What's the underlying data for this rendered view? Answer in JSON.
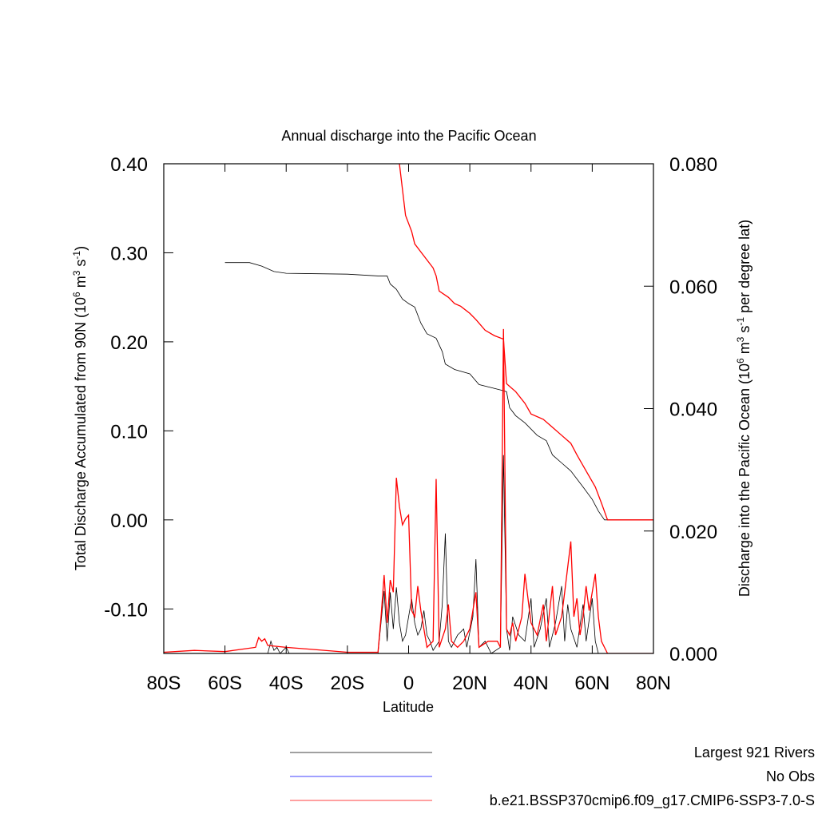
{
  "chart_data": {
    "type": "line",
    "title": "Annual discharge into the Pacific Ocean",
    "xlabel": "Latitude",
    "ylabel": [
      "Total Discharge Accumulated from 90N (10",
      "6",
      " m",
      "3",
      " s",
      "-1",
      ")"
    ],
    "y2label": [
      "Discharge into the Pacific Ocean (10",
      "6",
      " m",
      "3",
      " s",
      "-1",
      " per degree lat)"
    ],
    "xlim": [
      -80,
      80
    ],
    "xticks": [
      {
        "value": -80,
        "label": "80S"
      },
      {
        "value": -60,
        "label": "60S"
      },
      {
        "value": -40,
        "label": "40S"
      },
      {
        "value": -20,
        "label": "20S"
      },
      0,
      {
        "value": 20,
        "label": "20N"
      },
      {
        "value": 40,
        "label": "40N"
      },
      {
        "value": 60,
        "label": "60N"
      },
      {
        "value": 80,
        "label": "80N"
      }
    ],
    "ylim": [
      -0.15,
      0.4
    ],
    "yticks": [
      {
        "value": -0.1,
        "label": "-0.10"
      },
      {
        "value": 0,
        "label": "0.00"
      },
      {
        "value": 0.1,
        "label": "0.10"
      },
      {
        "value": 0.2,
        "label": "0.20"
      },
      {
        "value": 0.3,
        "label": "0.30"
      },
      {
        "value": 0.4,
        "label": "0.40"
      }
    ],
    "y2lim": [
      0,
      0.08
    ],
    "y2ticks": [
      {
        "value": 0,
        "label": "0.000"
      },
      {
        "value": 0.02,
        "label": "0.020"
      },
      {
        "value": 0.04,
        "label": "0.040"
      },
      {
        "value": 0.06,
        "label": "0.060"
      },
      {
        "value": 0.08,
        "label": "0.080"
      }
    ],
    "legend": [
      {
        "name": "Largest 921 Rivers",
        "color": "#000000"
      },
      {
        "name": "No Obs",
        "color": "#0000ff"
      },
      {
        "name": "b.e21.BSSP370cmip6.f09_g17.CMIP6-SSP3-7.0-S",
        "color": "#ff0000"
      }
    ],
    "series": [
      {
        "color": "#000000",
        "axis": "y",
        "x": [
          -60,
          -52,
          -48,
          -44,
          -40,
          -20,
          -10,
          -7,
          -6,
          -4,
          -2,
          0,
          2,
          3,
          4,
          6,
          9,
          11,
          12,
          15,
          20,
          23,
          30,
          32,
          33,
          35,
          38,
          42,
          45,
          47,
          50,
          53,
          57,
          60,
          62,
          64,
          70,
          80
        ],
        "values": [
          0.289,
          0.289,
          0.285,
          0.279,
          0.277,
          0.276,
          0.274,
          0.274,
          0.265,
          0.259,
          0.248,
          0.243,
          0.239,
          0.23,
          0.221,
          0.209,
          0.204,
          0.189,
          0.175,
          0.169,
          0.164,
          0.152,
          0.146,
          0.144,
          0.126,
          0.117,
          0.109,
          0.095,
          0.089,
          0.073,
          0.064,
          0.055,
          0.037,
          0.023,
          0.01,
          0,
          0,
          0
        ]
      },
      {
        "color": "#ff0000",
        "axis": "y",
        "x": [
          -3,
          -1,
          0,
          1,
          2,
          4,
          6,
          8,
          9,
          10,
          13,
          15,
          17,
          20,
          22,
          25,
          28,
          31,
          32,
          35,
          38,
          40,
          44,
          47,
          50,
          53,
          55,
          58,
          61,
          63,
          65,
          80
        ],
        "values": [
          0.4,
          0.342,
          0.333,
          0.324,
          0.31,
          0.301,
          0.292,
          0.283,
          0.274,
          0.257,
          0.25,
          0.243,
          0.24,
          0.232,
          0.225,
          0.213,
          0.207,
          0.203,
          0.153,
          0.144,
          0.131,
          0.119,
          0.113,
          0.104,
          0.095,
          0.086,
          0.073,
          0.055,
          0.037,
          0.019,
          0,
          0
        ]
      },
      {
        "color": "#000000",
        "axis": "y2",
        "x": [
          -80,
          -46,
          -45,
          -44,
          -43,
          -42,
          -40,
          -39,
          -10,
          -8,
          -7,
          -6,
          -5,
          -4,
          -3,
          -2,
          -1,
          0,
          1,
          2,
          3,
          4,
          5,
          6,
          7,
          8,
          10,
          11,
          12,
          13,
          14,
          16,
          18,
          19,
          21,
          22,
          23,
          25,
          27,
          30,
          31,
          32,
          33,
          34,
          36,
          38,
          40,
          41,
          43,
          45,
          46,
          48,
          50,
          51,
          52,
          53,
          55,
          57,
          58,
          60,
          61,
          62,
          80
        ],
        "values": [
          0,
          0,
          0.002,
          0.0005,
          0.001,
          0,
          0.001,
          0,
          0,
          0.0102,
          0.002,
          0.01,
          0.004,
          0.0108,
          0.005,
          0.002,
          0.003,
          0.006,
          0.0089,
          0.005,
          0.003,
          0.004,
          0.007,
          0.003,
          0.002,
          0.0005,
          0.002,
          0.008,
          0.0196,
          0.002,
          0.001,
          0.003,
          0.004,
          0.001,
          0.006,
          0.0154,
          0.001,
          0.002,
          0,
          0.001,
          0.0324,
          0.004,
          0.0005,
          0.006,
          0.003,
          0.002,
          0.009,
          0.001,
          0.004,
          0.009,
          0.001,
          0.005,
          0.011,
          0.002,
          0.008,
          0.004,
          0.001,
          0.008,
          0.002,
          0.009,
          0.002,
          0,
          0
        ]
      },
      {
        "color": "#ff0000",
        "axis": "y2",
        "x": [
          -80,
          -70,
          -60,
          -50,
          -49,
          -48,
          -47,
          -46,
          -40,
          -35,
          -20,
          -10,
          -9,
          -8,
          -7,
          -6,
          -5,
          -4,
          -3,
          -2,
          -1,
          0,
          1,
          2,
          3,
          4,
          5,
          6,
          8,
          9,
          10,
          12,
          13,
          14,
          16,
          18,
          20,
          22,
          23,
          26,
          29,
          30,
          31,
          32,
          33,
          34,
          35,
          37,
          38,
          40,
          42,
          44,
          45,
          47,
          48,
          50,
          51,
          53,
          54,
          55,
          56,
          57,
          58,
          59,
          61,
          62,
          63,
          65,
          80
        ],
        "values": [
          0.0002,
          0.0005,
          0.0003,
          0.001,
          0.0026,
          0.002,
          0.0024,
          0.0013,
          0.001,
          0.0008,
          0.0002,
          0.0002,
          0.006,
          0.0128,
          0.005,
          0.012,
          0.01,
          0.0287,
          0.024,
          0.021,
          0.022,
          0.0226,
          0.007,
          0.006,
          0.011,
          0.007,
          0.004,
          0.001,
          0.002,
          0.0285,
          0.001,
          0.004,
          0.008,
          0.002,
          0.001,
          0.002,
          0.004,
          0.01,
          0.001,
          0.002,
          0.002,
          0.001,
          0.053,
          0.004,
          0.003,
          0.005,
          0.002,
          0.006,
          0.013,
          0.005,
          0.003,
          0.008,
          0.002,
          0.011,
          0.003,
          0.006,
          0.01,
          0.0183,
          0.006,
          0.009,
          0.003,
          0.006,
          0.011,
          0.007,
          0.013,
          0.006,
          0.002,
          0,
          0
        ]
      }
    ]
  }
}
